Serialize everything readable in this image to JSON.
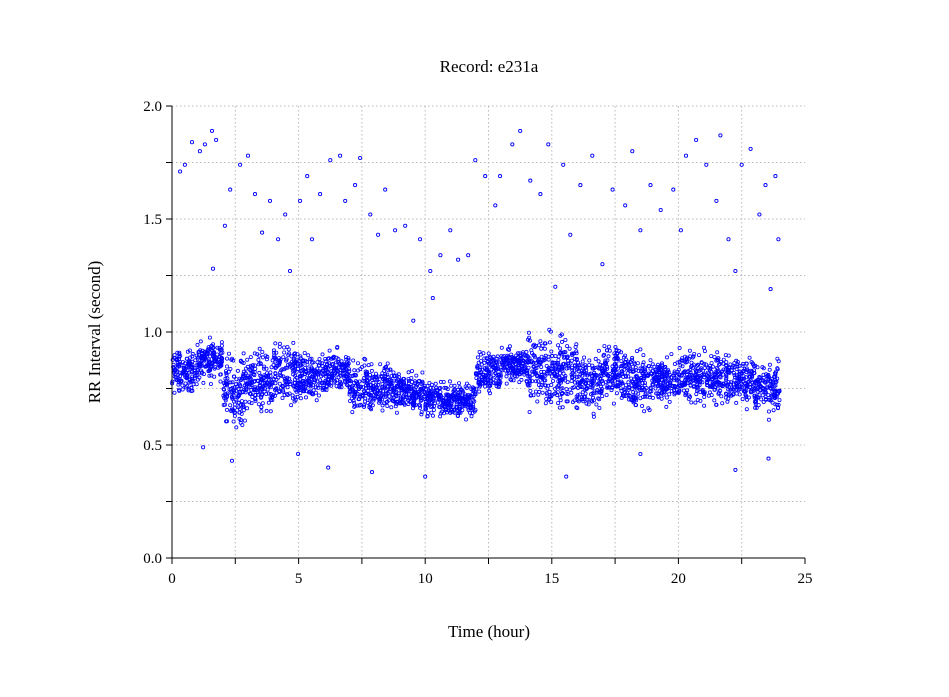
{
  "chart_data": {
    "type": "scatter",
    "title": "Record:  e231a",
    "xlabel": "Time (hour)",
    "ylabel": "RR Interval (second)",
    "xlim": [
      0,
      25
    ],
    "ylim": [
      0.0,
      2.0
    ],
    "x_ticks": [
      "0",
      "5",
      "10",
      "15",
      "20",
      "25"
    ],
    "x_tick_values": [
      0,
      5,
      10,
      15,
      20,
      25
    ],
    "y_ticks": [
      "0.0",
      "0.5",
      "1.0",
      "1.5",
      "2.0"
    ],
    "y_tick_values": [
      0.0,
      0.5,
      1.0,
      1.5,
      2.0
    ],
    "grid": true,
    "legend": "none",
    "marker": "open-circle",
    "color": "#0000ff",
    "dense_band": [
      {
        "hours": [
          0,
          1
        ],
        "low": 0.7,
        "high": 0.95
      },
      {
        "hours": [
          1,
          2
        ],
        "low": 0.75,
        "high": 1.0
      },
      {
        "hours": [
          2,
          3
        ],
        "low": 0.55,
        "high": 0.95
      },
      {
        "hours": [
          3,
          4
        ],
        "low": 0.6,
        "high": 0.95
      },
      {
        "hours": [
          4,
          5
        ],
        "low": 0.6,
        "high": 1.0
      },
      {
        "hours": [
          5,
          6
        ],
        "low": 0.65,
        "high": 0.95
      },
      {
        "hours": [
          6,
          7
        ],
        "low": 0.7,
        "high": 0.95
      },
      {
        "hours": [
          7,
          8
        ],
        "low": 0.6,
        "high": 0.92
      },
      {
        "hours": [
          8,
          9
        ],
        "low": 0.6,
        "high": 0.9
      },
      {
        "hours": [
          9,
          10
        ],
        "low": 0.62,
        "high": 0.85
      },
      {
        "hours": [
          10,
          11
        ],
        "low": 0.6,
        "high": 0.8
      },
      {
        "hours": [
          11,
          12
        ],
        "low": 0.6,
        "high": 0.8
      },
      {
        "hours": [
          12,
          13
        ],
        "low": 0.7,
        "high": 0.95
      },
      {
        "hours": [
          13,
          14
        ],
        "low": 0.75,
        "high": 0.95
      },
      {
        "hours": [
          14,
          15
        ],
        "low": 0.6,
        "high": 1.05
      },
      {
        "hours": [
          15,
          16
        ],
        "low": 0.6,
        "high": 1.05
      },
      {
        "hours": [
          16,
          17
        ],
        "low": 0.6,
        "high": 0.95
      },
      {
        "hours": [
          17,
          18
        ],
        "low": 0.65,
        "high": 1.0
      },
      {
        "hours": [
          18,
          19
        ],
        "low": 0.6,
        "high": 0.95
      },
      {
        "hours": [
          19,
          20
        ],
        "low": 0.65,
        "high": 0.92
      },
      {
        "hours": [
          20,
          21
        ],
        "low": 0.65,
        "high": 0.95
      },
      {
        "hours": [
          21,
          22
        ],
        "low": 0.65,
        "high": 0.95
      },
      {
        "hours": [
          22,
          23
        ],
        "low": 0.65,
        "high": 0.92
      },
      {
        "hours": [
          23,
          24
        ],
        "low": 0.6,
        "high": 0.9
      }
    ],
    "outliers": [
      [
        0.32,
        1.71
      ],
      [
        0.51,
        1.74
      ],
      [
        0.79,
        1.84
      ],
      [
        1.1,
        1.8
      ],
      [
        1.3,
        1.83
      ],
      [
        1.58,
        1.89
      ],
      [
        1.74,
        1.85
      ],
      [
        1.62,
        1.28
      ],
      [
        2.09,
        1.47
      ],
      [
        2.3,
        1.63
      ],
      [
        2.69,
        1.74
      ],
      [
        3.0,
        1.78
      ],
      [
        3.28,
        1.61
      ],
      [
        3.56,
        1.44
      ],
      [
        3.87,
        1.58
      ],
      [
        4.19,
        1.41
      ],
      [
        4.47,
        1.52
      ],
      [
        4.66,
        1.27
      ],
      [
        5.06,
        1.58
      ],
      [
        5.34,
        1.69
      ],
      [
        5.53,
        1.41
      ],
      [
        5.85,
        1.61
      ],
      [
        6.25,
        1.76
      ],
      [
        6.64,
        1.78
      ],
      [
        6.84,
        1.58
      ],
      [
        7.23,
        1.65
      ],
      [
        7.43,
        1.77
      ],
      [
        7.83,
        1.52
      ],
      [
        8.14,
        1.43
      ],
      [
        8.42,
        1.63
      ],
      [
        8.81,
        1.45
      ],
      [
        9.21,
        1.47
      ],
      [
        9.53,
        1.05
      ],
      [
        9.8,
        1.41
      ],
      [
        10.2,
        1.27
      ],
      [
        10.3,
        1.15
      ],
      [
        10.6,
        1.34
      ],
      [
        10.99,
        1.45
      ],
      [
        11.3,
        1.32
      ],
      [
        11.7,
        1.34
      ],
      [
        11.98,
        1.76
      ],
      [
        12.37,
        1.69
      ],
      [
        12.77,
        1.56
      ],
      [
        12.96,
        1.69
      ],
      [
        13.44,
        1.83
      ],
      [
        13.75,
        1.89
      ],
      [
        14.15,
        1.67
      ],
      [
        14.55,
        1.61
      ],
      [
        14.86,
        1.83
      ],
      [
        15.14,
        1.2
      ],
      [
        15.45,
        1.74
      ],
      [
        15.73,
        1.43
      ],
      [
        16.13,
        1.65
      ],
      [
        16.6,
        1.78
      ],
      [
        17.0,
        1.3
      ],
      [
        17.4,
        1.63
      ],
      [
        17.9,
        1.56
      ],
      [
        18.18,
        1.8
      ],
      [
        18.5,
        1.45
      ],
      [
        18.9,
        1.65
      ],
      [
        19.3,
        1.54
      ],
      [
        19.8,
        1.63
      ],
      [
        20.1,
        1.45
      ],
      [
        20.3,
        1.78
      ],
      [
        20.7,
        1.85
      ],
      [
        21.1,
        1.74
      ],
      [
        21.5,
        1.58
      ],
      [
        21.66,
        1.87
      ],
      [
        21.98,
        1.41
      ],
      [
        22.25,
        1.27
      ],
      [
        22.5,
        1.74
      ],
      [
        22.85,
        1.81
      ],
      [
        23.2,
        1.52
      ],
      [
        23.44,
        1.65
      ],
      [
        23.64,
        1.19
      ],
      [
        23.83,
        1.69
      ],
      [
        23.95,
        1.41
      ],
      [
        1.23,
        0.49
      ],
      [
        2.37,
        0.43
      ],
      [
        4.98,
        0.46
      ],
      [
        6.17,
        0.4
      ],
      [
        7.9,
        0.38
      ],
      [
        10.0,
        0.36
      ],
      [
        15.57,
        0.36
      ],
      [
        18.5,
        0.46
      ],
      [
        22.25,
        0.39
      ],
      [
        23.56,
        0.44
      ]
    ]
  }
}
